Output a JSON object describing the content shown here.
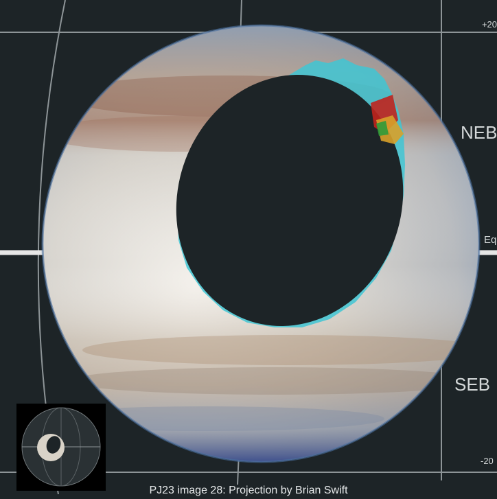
{
  "caption": "PJ23 image 28:  Projection by Brian Swift",
  "labels": {
    "plus20": "+20",
    "neb": "NEB",
    "eq": "Eq",
    "seb": "SEB",
    "minus20": "-20"
  },
  "colors": {
    "background": "#1d2427",
    "grid": "#8d9497",
    "equator": "#e6e6e6",
    "limb_highlight": "#3fc6d4"
  }
}
